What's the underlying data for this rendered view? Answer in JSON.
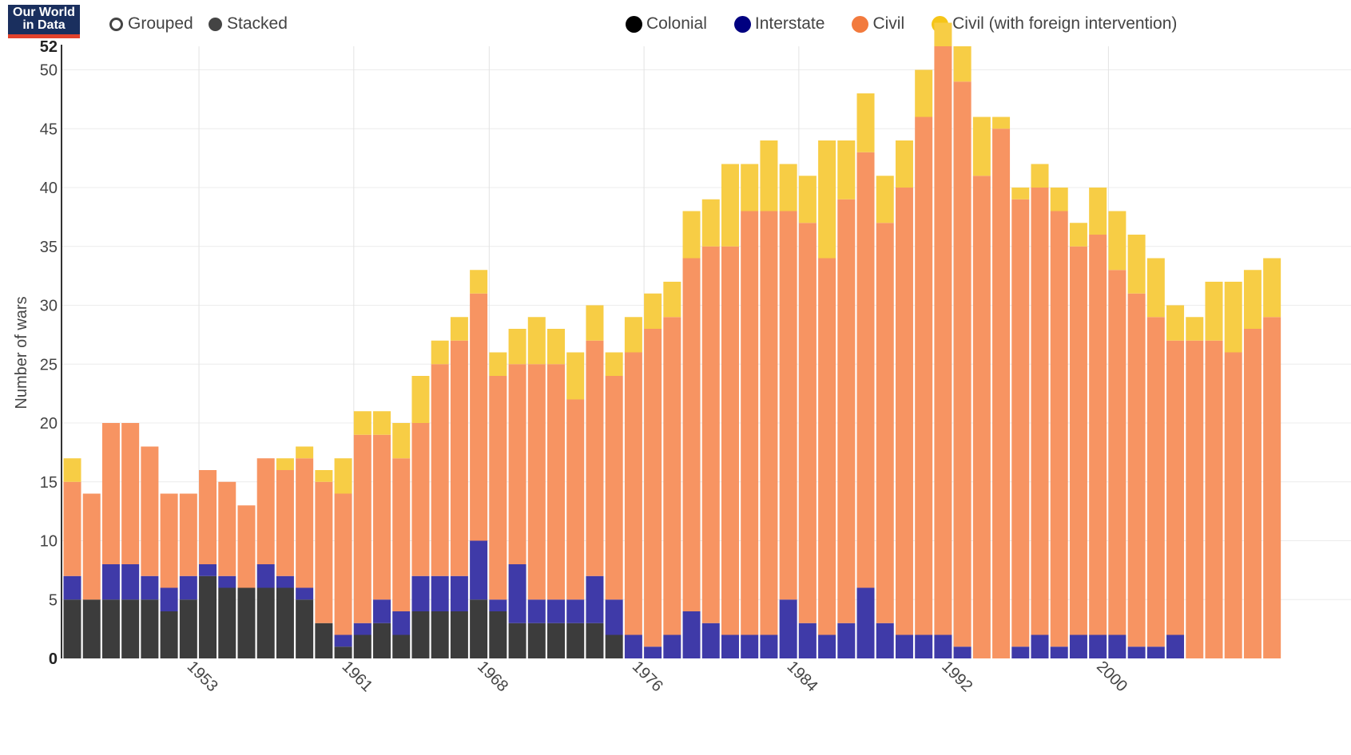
{
  "brand": {
    "line1": "Our World",
    "line2": "in Data"
  },
  "modes": {
    "grouped": "Grouped",
    "stacked": "Stacked",
    "selected": "Stacked"
  },
  "colors": {
    "Colonial": "#3c3c3c",
    "Interstate": "#3f3aa8",
    "Civil": "#f79462",
    "Civil (with foreign intervention)": "#f7cd45"
  },
  "legend_colors": {
    "Colonial": "#000000",
    "Interstate": "#000080",
    "Civil": "#f27a3d",
    "Civil (with foreign intervention)": "#f5c518"
  },
  "chart_data": {
    "type": "bar",
    "stacked": true,
    "ylabel": "Number of wars",
    "xlabel": "",
    "ylim": [
      0,
      52
    ],
    "yticks": [
      0,
      5,
      10,
      15,
      20,
      25,
      30,
      35,
      40,
      45,
      50,
      52
    ],
    "xticks": [
      "1953",
      "1961",
      "1968",
      "1976",
      "1984",
      "1992",
      "2000"
    ],
    "grid": true,
    "legend_position": "top-right",
    "categories": [
      "1946",
      "1947",
      "1948",
      "1949",
      "1950",
      "1951",
      "1952",
      "1953",
      "1954",
      "1955",
      "1956",
      "1957",
      "1958",
      "1959",
      "1960",
      "1961",
      "1962",
      "1963",
      "1964",
      "1965",
      "1966",
      "1967",
      "1968",
      "1969",
      "1970",
      "1971",
      "1972",
      "1973",
      "1974",
      "1975",
      "1976",
      "1977",
      "1978",
      "1979",
      "1980",
      "1981",
      "1982",
      "1983",
      "1984",
      "1985",
      "1986",
      "1987",
      "1988",
      "1989",
      "1990",
      "1991",
      "1992",
      "1993",
      "1994",
      "1995",
      "1996",
      "1997",
      "1998",
      "1999",
      "2000",
      "2001",
      "2002",
      "2003",
      "2004",
      "2005",
      "2006",
      "2007",
      "2008"
    ],
    "series": [
      {
        "name": "Colonial",
        "values": [
          5,
          5,
          5,
          5,
          5,
          4,
          5,
          7,
          6,
          6,
          6,
          6,
          5,
          3,
          1,
          2,
          3,
          2,
          4,
          4,
          4,
          5,
          4,
          3,
          3,
          3,
          3,
          3,
          2,
          0,
          0,
          0,
          0,
          0,
          0,
          0,
          0,
          0,
          0,
          0,
          0,
          0,
          0,
          0,
          0,
          0,
          0,
          0,
          0,
          0,
          0,
          0,
          0,
          0,
          0,
          0,
          0,
          0,
          0,
          0,
          0,
          0,
          0
        ]
      },
      {
        "name": "Interstate",
        "values": [
          2,
          0,
          3,
          3,
          2,
          2,
          2,
          1,
          1,
          0,
          2,
          1,
          1,
          0,
          1,
          1,
          2,
          2,
          3,
          3,
          3,
          5,
          1,
          5,
          2,
          2,
          2,
          4,
          3,
          2,
          1,
          2,
          4,
          3,
          2,
          2,
          2,
          5,
          3,
          2,
          3,
          6,
          3,
          2,
          2,
          2,
          1,
          0,
          0,
          1,
          2,
          1,
          2,
          2,
          2,
          1,
          1,
          2,
          0,
          0,
          0,
          0,
          0
        ]
      },
      {
        "name": "Civil",
        "values": [
          8,
          9,
          12,
          12,
          11,
          8,
          7,
          8,
          8,
          7,
          9,
          9,
          11,
          12,
          12,
          16,
          14,
          13,
          13,
          18,
          20,
          21,
          19,
          17,
          20,
          20,
          17,
          20,
          19,
          24,
          27,
          27,
          30,
          32,
          33,
          36,
          36,
          33,
          34,
          32,
          36,
          37,
          34,
          38,
          44,
          50,
          48,
          41,
          45,
          38,
          38,
          37,
          33,
          34,
          31,
          30,
          28,
          25,
          27,
          27,
          26,
          28,
          29
        ]
      },
      {
        "name": "Civil (with foreign intervention)",
        "values": [
          2,
          0,
          0,
          0,
          0,
          0,
          0,
          0,
          0,
          0,
          0,
          1,
          1,
          1,
          3,
          2,
          2,
          3,
          4,
          2,
          2,
          2,
          2,
          3,
          4,
          3,
          4,
          3,
          2,
          3,
          3,
          3,
          4,
          4,
          7,
          4,
          6,
          4,
          4,
          10,
          5,
          5,
          4,
          4,
          4,
          2,
          3,
          5,
          1,
          1,
          2,
          2,
          2,
          4,
          5,
          5,
          5,
          3,
          2,
          5,
          6,
          5,
          5
        ]
      }
    ]
  }
}
